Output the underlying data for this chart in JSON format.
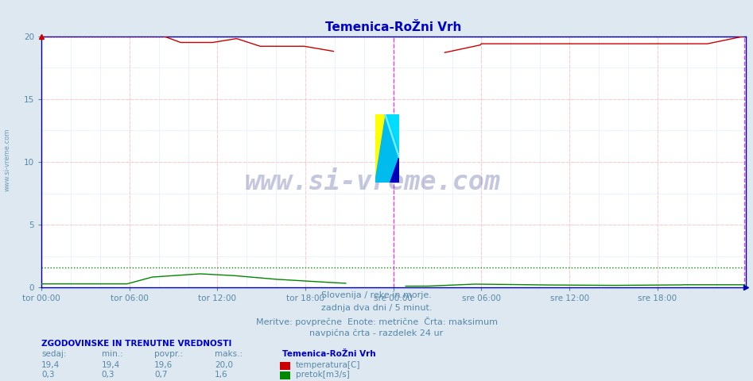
{
  "title": "Temenica-RoŽni Vrh",
  "title_color": "#0000cc",
  "background_color": "#dde8f0",
  "plot_bg_color": "#ffffff",
  "x_tick_labels": [
    "tor 00:00",
    "tor 06:00",
    "tor 12:00",
    "tor 18:00",
    "sre 00:00",
    "sre 06:00",
    "sre 12:00",
    "sre 18:00"
  ],
  "x_tick_positions": [
    0,
    72,
    144,
    216,
    288,
    360,
    432,
    504
  ],
  "x_max": 576,
  "y_ticks": [
    0,
    5,
    10,
    15,
    20
  ],
  "temp_color": "#cc0000",
  "flow_color": "#008800",
  "midday_line_color": "#dd44dd",
  "midday_x": 288,
  "watermark_text": "www.si-vreme.com",
  "watermark_color": "#1a237e",
  "watermark_alpha": 0.25,
  "subtitle_lines": [
    "Slovenija / reke in morje.",
    "zadnja dva dni / 5 minut.",
    "Meritve: povprečne  Enote: metrične  Črta: maksimum",
    "navpična črta - razdelek 24 ur"
  ],
  "subtitle_color": "#5588aa",
  "legend_header": "ZGODOVINSKE IN TRENUTNE VREDNOSTI",
  "legend_header_color": "#0000cc",
  "legend_col_headers": [
    "sedaj:",
    "min.:",
    "povpr.:",
    "maks.:"
  ],
  "legend_col_color": "#5588aa",
  "legend_station": "Temenica-RoŽni Vrh",
  "legend_station_color": "#0000cc",
  "legend_rows": [
    {
      "values": [
        "19,4",
        "19,4",
        "19,6",
        "20,0"
      ],
      "label": "temperatura[C]",
      "color": "#cc0000"
    },
    {
      "values": [
        "0,3",
        "0,3",
        "0,7",
        "1,6"
      ],
      "label": "pretok[m3/s]",
      "color": "#008800"
    }
  ],
  "left_label_text": "www.si-vreme.com",
  "left_label_color": "#5588aa",
  "axis_color": "#0000aa",
  "tick_color": "#5588aa",
  "grid_major_color": "#ffcccc",
  "grid_minor_color": "#ddeeff",
  "temp_max": 20.0,
  "flow_max": 1.6
}
